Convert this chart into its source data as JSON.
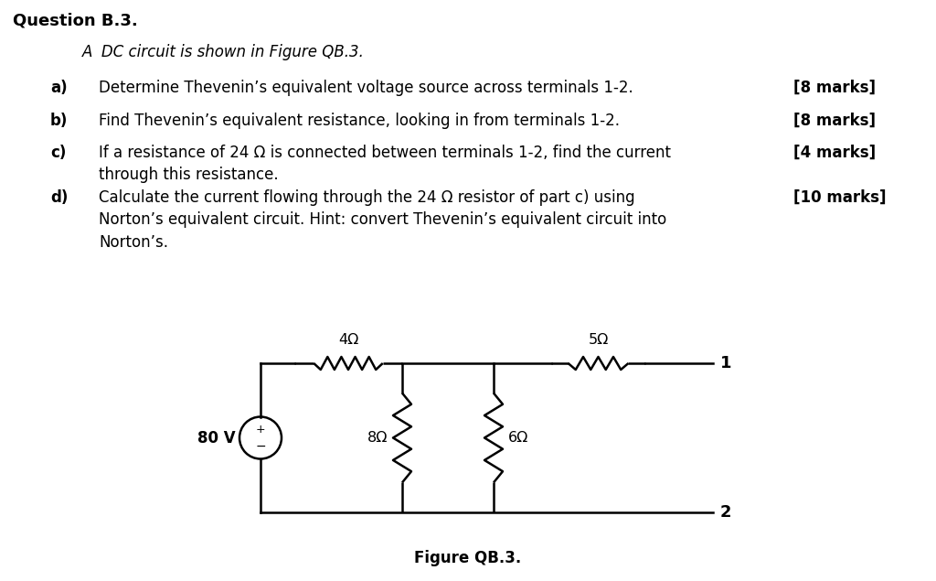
{
  "title": "Question B.3.",
  "subtitle": "A  DC circuit is shown in Figure QB.3.",
  "items": [
    {
      "label": "a)",
      "text": "Determine Thevenin’s equivalent voltage source across terminals 1-2.",
      "marks": "[8 marks]",
      "multiline": false
    },
    {
      "label": "b)",
      "text": "Find Thevenin’s equivalent resistance, looking in from terminals 1-2.",
      "marks": "[8 marks]",
      "multiline": false
    },
    {
      "label": "c)",
      "text": "If a resistance of 24 Ω is connected between terminals 1-2, find the current\nthrough this resistance.",
      "marks": "[4 marks]",
      "multiline": true
    },
    {
      "label": "d)",
      "text": "Calculate the current flowing through the 24 Ω resistor of part c) using\nNorton’s equivalent circuit. Hint: convert Thevenin’s equivalent circuit into\nNorton’s.",
      "marks": "[10 marks]",
      "multiline": true
    }
  ],
  "figure_caption": "Figure QB.3.",
  "bg_color": "#ffffff",
  "text_color": "#000000",
  "font_size_title": 13,
  "font_size_subtitle": 12,
  "font_size_body": 12,
  "font_size_marks": 12,
  "circuit": {
    "vs_label": "80 V",
    "r1_label": "4Ω",
    "r2_label": "8Ω",
    "r3_label": "6Ω",
    "r4_label": "5Ω",
    "t1_label": "1",
    "t2_label": "2"
  }
}
